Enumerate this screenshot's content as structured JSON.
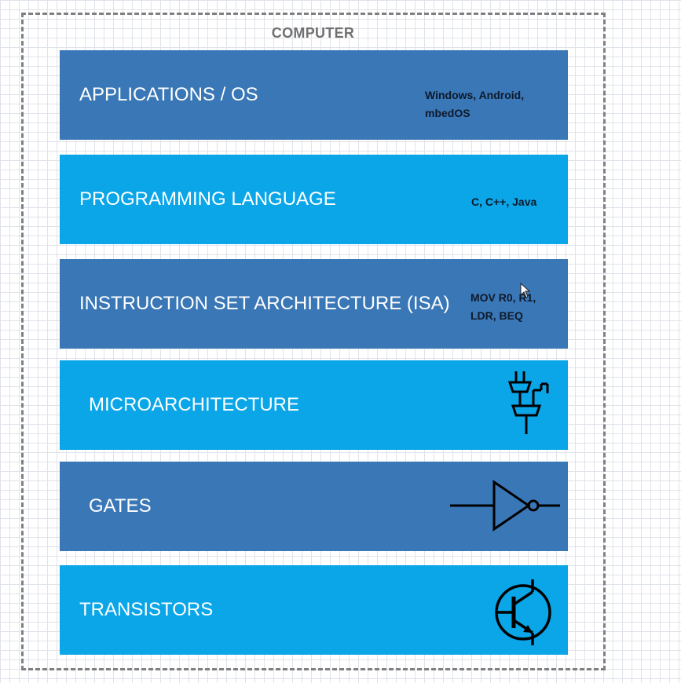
{
  "frame": {
    "title": "COMPUTER"
  },
  "layers": [
    {
      "label": "APPLICATIONS / OS",
      "note_lines": [
        "Windows, Android,",
        "mbedOS"
      ]
    },
    {
      "label": "PROGRAMMING LANGUAGE",
      "note_lines": [
        "C, C++, Java"
      ]
    },
    {
      "label": "INSTRUCTION SET ARCHITECTURE (ISA)",
      "note_lines": [
        "MOV R0, R1,",
        "LDR,  BEQ"
      ]
    },
    {
      "label": "MICROARCHITECTURE",
      "icon": "mux-tree-icon"
    },
    {
      "label": "GATES",
      "icon": "not-gate-icon"
    },
    {
      "label": "TRANSISTORS",
      "icon": "transistor-icon"
    }
  ],
  "colors": {
    "dark_band": "#3a77b6",
    "light_band": "#0aa6e8",
    "label_text": "#ffffff",
    "note_text": "#0e1a2b",
    "frame_border": "#808080"
  }
}
